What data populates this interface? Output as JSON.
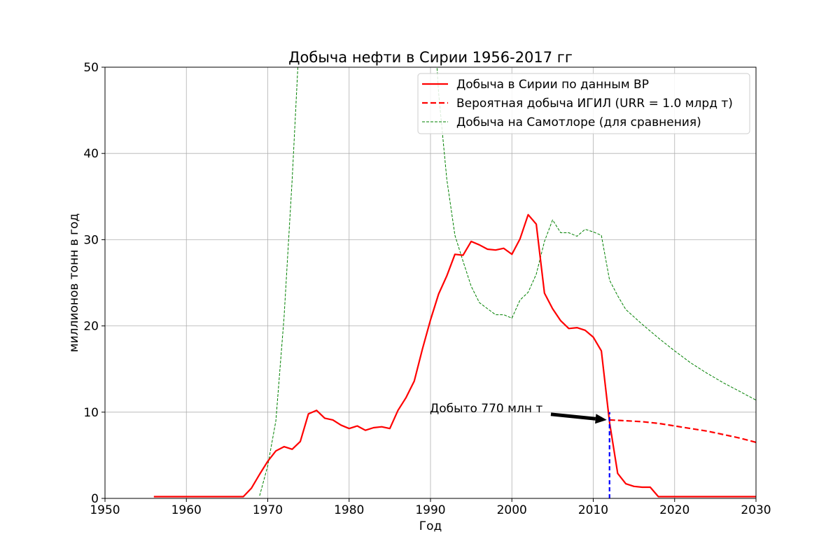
{
  "chart_data": {
    "type": "line",
    "title": "Добыча нефти в Сирии 1956-2017 гг",
    "xlabel": "Год",
    "ylabel": "миллионов тонн в год",
    "xlim": [
      1950,
      2030
    ],
    "ylim": [
      0,
      50
    ],
    "xticks": [
      "1950",
      "1960",
      "1970",
      "1980",
      "1990",
      "2000",
      "2010",
      "2020",
      "2030"
    ],
    "yticks": [
      "0",
      "10",
      "20",
      "30",
      "40",
      "50"
    ],
    "grid": true,
    "legend_position": "top-right",
    "series": [
      {
        "name": "Добыча в Сирии по данным BP",
        "color": "#ff0000",
        "style": "solid",
        "points": [
          [
            1956,
            0.2
          ],
          [
            1957,
            0.2
          ],
          [
            1958,
            0.2
          ],
          [
            1959,
            0.2
          ],
          [
            1960,
            0.2
          ],
          [
            1961,
            0.2
          ],
          [
            1962,
            0.2
          ],
          [
            1963,
            0.2
          ],
          [
            1964,
            0.2
          ],
          [
            1965,
            0.2
          ],
          [
            1966,
            0.2
          ],
          [
            1967,
            0.2
          ],
          [
            1968,
            1.2
          ],
          [
            1969,
            2.8
          ],
          [
            1970,
            4.3
          ],
          [
            1971,
            5.5
          ],
          [
            1972,
            6.0
          ],
          [
            1973,
            5.7
          ],
          [
            1974,
            6.6
          ],
          [
            1975,
            9.8
          ],
          [
            1976,
            10.2
          ],
          [
            1977,
            9.3
          ],
          [
            1978,
            9.1
          ],
          [
            1979,
            8.5
          ],
          [
            1980,
            8.1
          ],
          [
            1981,
            8.4
          ],
          [
            1982,
            7.9
          ],
          [
            1983,
            8.2
          ],
          [
            1984,
            8.3
          ],
          [
            1985,
            8.1
          ],
          [
            1986,
            10.2
          ],
          [
            1987,
            11.7
          ],
          [
            1988,
            13.6
          ],
          [
            1989,
            17.3
          ],
          [
            1990,
            20.7
          ],
          [
            1991,
            23.7
          ],
          [
            1992,
            25.8
          ],
          [
            1993,
            28.3
          ],
          [
            1994,
            28.2
          ],
          [
            1995,
            29.8
          ],
          [
            1996,
            29.4
          ],
          [
            1997,
            28.9
          ],
          [
            1998,
            28.8
          ],
          [
            1999,
            29.0
          ],
          [
            2000,
            28.3
          ],
          [
            2001,
            30.1
          ],
          [
            2002,
            32.9
          ],
          [
            2003,
            31.8
          ],
          [
            2004,
            23.8
          ],
          [
            2005,
            22.0
          ],
          [
            2006,
            20.6
          ],
          [
            2007,
            19.7
          ],
          [
            2008,
            19.8
          ],
          [
            2009,
            19.5
          ],
          [
            2010,
            18.7
          ],
          [
            2011,
            17.1
          ],
          [
            2012,
            8.8
          ],
          [
            2013,
            2.9
          ],
          [
            2014,
            1.7
          ],
          [
            2015,
            1.4
          ],
          [
            2016,
            1.3
          ],
          [
            2017,
            1.3
          ],
          [
            2018,
            0.2
          ],
          [
            2020,
            0.2
          ],
          [
            2025,
            0.2
          ],
          [
            2030,
            0.2
          ]
        ]
      },
      {
        "name": "Вероятная добыча ИГИЛ (URR = 1.0 млрд т)",
        "color": "#ff0000",
        "style": "dashed",
        "points": [
          [
            2012,
            9.1
          ],
          [
            2014,
            9.0
          ],
          [
            2016,
            8.9
          ],
          [
            2018,
            8.7
          ],
          [
            2020,
            8.4
          ],
          [
            2022,
            8.1
          ],
          [
            2024,
            7.8
          ],
          [
            2026,
            7.4
          ],
          [
            2028,
            7.0
          ],
          [
            2030,
            6.5
          ]
        ]
      },
      {
        "name": "Добыча на Самотлоре (для сравнения)",
        "color": "#008000",
        "style": "dashed-thin",
        "points": [
          [
            1969,
            0.3
          ],
          [
            1970,
            3.8
          ],
          [
            1971,
            9.0
          ],
          [
            1972,
            21.0
          ],
          [
            1973,
            37.0
          ],
          [
            1973.7,
            50.0
          ],
          [
            1990.8,
            50.0
          ],
          [
            1991,
            47.0
          ],
          [
            1992,
            37.0
          ],
          [
            1993,
            30.5
          ],
          [
            1994,
            27.5
          ],
          [
            1995,
            24.6
          ],
          [
            1996,
            22.7
          ],
          [
            1997,
            22.0
          ],
          [
            1998,
            21.3
          ],
          [
            1999,
            21.3
          ],
          [
            2000,
            20.9
          ],
          [
            2001,
            23.0
          ],
          [
            2002,
            23.9
          ],
          [
            2003,
            26.0
          ],
          [
            2004,
            29.8
          ],
          [
            2005,
            32.3
          ],
          [
            2006,
            30.8
          ],
          [
            2007,
            30.8
          ],
          [
            2008,
            30.4
          ],
          [
            2009,
            31.2
          ],
          [
            2010,
            30.9
          ],
          [
            2011,
            30.5
          ],
          [
            2012,
            25.3
          ],
          [
            2013,
            23.5
          ],
          [
            2014,
            21.9
          ],
          [
            2016,
            20.2
          ],
          [
            2018,
            18.6
          ],
          [
            2020,
            17.1
          ],
          [
            2022,
            15.7
          ],
          [
            2024,
            14.5
          ],
          [
            2026,
            13.4
          ],
          [
            2028,
            12.4
          ],
          [
            2030,
            11.4
          ]
        ]
      }
    ],
    "vline": {
      "x": 2012,
      "y": [
        0,
        10
      ],
      "color": "#0000ff"
    },
    "annotation": {
      "text": "Добыто 770 млн т",
      "text_at": [
        1990,
        10
      ],
      "arrow_to": [
        2012,
        9.1
      ]
    }
  }
}
